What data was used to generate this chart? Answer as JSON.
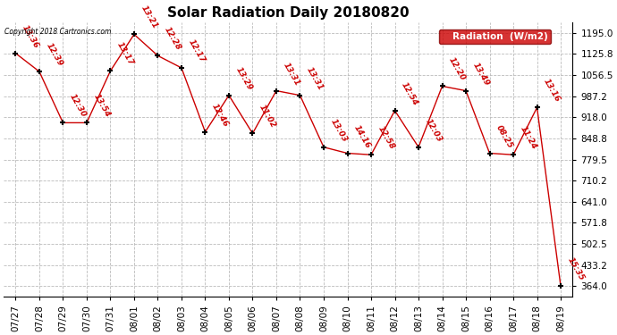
{
  "title": "Solar Radiation Daily 20180820",
  "copyright_text": "Copyright 2018 Cartronics.com",
  "legend_label": "Radiation  (W/m2)",
  "dates": [
    "07/27",
    "07/28",
    "07/29",
    "07/30",
    "07/31",
    "08/01",
    "08/02",
    "08/03",
    "08/04",
    "08/05",
    "08/06",
    "08/07",
    "08/08",
    "08/09",
    "08/10",
    "08/11",
    "08/12",
    "08/13",
    "08/14",
    "08/15",
    "08/16",
    "08/17",
    "08/18",
    "08/19"
  ],
  "values": [
    1128,
    1068,
    900,
    900,
    1070,
    1190,
    1120,
    1080,
    870,
    990,
    865,
    1005,
    990,
    820,
    800,
    795,
    940,
    820,
    1020,
    1005,
    800,
    795,
    950,
    364
  ],
  "time_labels": [
    "13:36",
    "12:39",
    "12:30",
    "13:54",
    "13:17",
    "13:21",
    "12:28",
    "12:17",
    "12:46",
    "13:29",
    "11:02",
    "13:31",
    "13:31",
    "13:03",
    "14:16",
    "12:58",
    "12:54",
    "12:03",
    "12:20",
    "13:49",
    "08:25",
    "11:24",
    "13:16",
    "15:35"
  ],
  "line_color": "#cc0000",
  "marker_color": "#000000",
  "background_color": "#ffffff",
  "grid_color": "#bbbbbb",
  "yticks": [
    364.0,
    433.2,
    502.5,
    571.8,
    641.0,
    710.2,
    779.5,
    848.8,
    918.0,
    987.2,
    1056.5,
    1125.8,
    1195.0
  ],
  "ylim": [
    330,
    1230
  ],
  "title_fontsize": 11,
  "label_fontsize": 7.5
}
